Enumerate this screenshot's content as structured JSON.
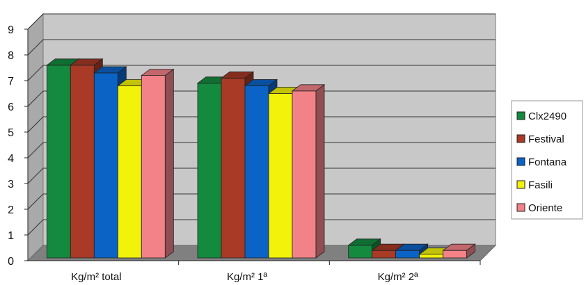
{
  "chart_data": {
    "type": "bar",
    "title": "",
    "xlabel": "",
    "ylabel": "",
    "ylim": [
      0,
      9
    ],
    "yticks": [
      "0",
      "1",
      "2",
      "3",
      "4",
      "5",
      "6",
      "7",
      "8",
      "9"
    ],
    "grid": true,
    "legend_position": "right",
    "categories": [
      "Kg/m² total",
      "Kg/m² 1ª",
      "Kg/m² 2ª"
    ],
    "series": [
      {
        "name": "Clx2490",
        "color": "#138a3e",
        "values": [
          7.6,
          6.9,
          0.6
        ]
      },
      {
        "name": "Festival",
        "color": "#a83a26",
        "values": [
          7.6,
          7.1,
          0.4
        ]
      },
      {
        "name": "Fontana",
        "color": "#0b63c5",
        "values": [
          7.3,
          6.8,
          0.4
        ]
      },
      {
        "name": "Fasili",
        "color": "#f2f20a",
        "values": [
          6.8,
          6.5,
          0.25
        ]
      },
      {
        "name": "Oriente",
        "color": "#f28288",
        "values": [
          7.2,
          6.6,
          0.4
        ]
      }
    ]
  }
}
